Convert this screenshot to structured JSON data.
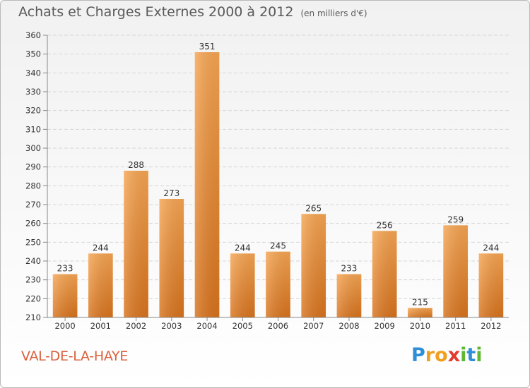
{
  "chart_data": {
    "type": "bar",
    "title": "Achats et Charges Externes 2000 à 2012",
    "subtitle": "(en milliers d'€)",
    "categories": [
      "2000",
      "2001",
      "2002",
      "2003",
      "2004",
      "2005",
      "2006",
      "2007",
      "2008",
      "2009",
      "2010",
      "2011",
      "2012"
    ],
    "values": [
      233,
      244,
      288,
      273,
      351,
      244,
      245,
      265,
      233,
      256,
      215,
      259,
      244
    ],
    "ylim": [
      210,
      360
    ],
    "yticks": [
      210,
      220,
      230,
      240,
      250,
      260,
      270,
      280,
      290,
      300,
      310,
      320,
      330,
      340,
      350,
      360
    ],
    "grid": true,
    "bar_color": "#f28c28"
  },
  "commune": "VAL-DE-LA-HAYE",
  "brand": {
    "letters": [
      "P",
      "r",
      "o",
      "x",
      "i",
      "t",
      "i"
    ],
    "colors": [
      "#2e8fd6",
      "#f0a020",
      "#f0a020",
      "#e23a2e",
      "#5fb832",
      "#2e8fd6",
      "#5fb832"
    ]
  }
}
